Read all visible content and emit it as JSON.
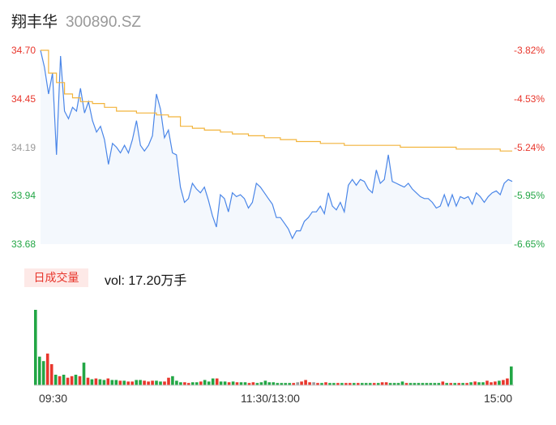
{
  "header": {
    "name": "翔丰华",
    "code": "300890.SZ"
  },
  "volume": {
    "badge": "日成交量",
    "label": "vol: 17.20万手"
  },
  "colors": {
    "price": "#4a86e8",
    "avg": "#f2b43c",
    "up": "#e8362c",
    "down": "#22a645",
    "neutral": "#999999"
  },
  "chart_data": [
    {
      "type": "line",
      "y_ticks_left": [
        "34.70",
        "34.45",
        "34.19",
        "33.94",
        "33.68"
      ],
      "y_ticks_right": [
        "-3.82%",
        "-4.53%",
        "-5.24%",
        "-5.95%",
        "-6.65%"
      ],
      "ylim": [
        33.68,
        34.7
      ],
      "x_ticks": [
        "09:30",
        "11:30/13:00",
        "15:00"
      ],
      "series": [
        {
          "role": "price",
          "points": [
            [
              0,
              34.7
            ],
            [
              1,
              34.61
            ],
            [
              2,
              34.47
            ],
            [
              3,
              34.58
            ],
            [
              4,
              34.15
            ],
            [
              5,
              34.67
            ],
            [
              6,
              34.38
            ],
            [
              7,
              34.34
            ],
            [
              8,
              34.4
            ],
            [
              9,
              34.38
            ],
            [
              10,
              34.5
            ],
            [
              11,
              34.37
            ],
            [
              12,
              34.43
            ],
            [
              13,
              34.33
            ],
            [
              14,
              34.27
            ],
            [
              15,
              34.3
            ],
            [
              16,
              34.23
            ],
            [
              17,
              34.1
            ],
            [
              18,
              34.21
            ],
            [
              19,
              34.19
            ],
            [
              20,
              34.16
            ],
            [
              21,
              34.2
            ],
            [
              22,
              34.16
            ],
            [
              23,
              34.23
            ],
            [
              24,
              34.33
            ],
            [
              25,
              34.2
            ],
            [
              26,
              34.17
            ],
            [
              27,
              34.2
            ],
            [
              28,
              34.25
            ],
            [
              29,
              34.47
            ],
            [
              30,
              34.39
            ],
            [
              31,
              34.24
            ],
            [
              32,
              34.28
            ],
            [
              33,
              34.16
            ],
            [
              34,
              34.15
            ],
            [
              35,
              33.98
            ],
            [
              36,
              33.9
            ],
            [
              37,
              33.92
            ],
            [
              38,
              34.0
            ],
            [
              39,
              33.97
            ],
            [
              40,
              33.95
            ],
            [
              41,
              33.98
            ],
            [
              42,
              33.91
            ],
            [
              43,
              33.83
            ],
            [
              44,
              33.77
            ],
            [
              45,
              33.94
            ],
            [
              46,
              33.92
            ],
            [
              47,
              33.85
            ],
            [
              48,
              33.95
            ],
            [
              49,
              33.93
            ],
            [
              50,
              33.94
            ],
            [
              51,
              33.92
            ],
            [
              52,
              33.87
            ],
            [
              53,
              33.9
            ],
            [
              54,
              34.0
            ],
            [
              55,
              33.98
            ],
            [
              56,
              33.95
            ],
            [
              57,
              33.92
            ],
            [
              58,
              33.89
            ],
            [
              59,
              33.82
            ],
            [
              60,
              33.82
            ],
            [
              61,
              33.79
            ],
            [
              62,
              33.76
            ],
            [
              63,
              33.71
            ],
            [
              64,
              33.75
            ],
            [
              65,
              33.75
            ],
            [
              66,
              33.8
            ],
            [
              67,
              33.82
            ],
            [
              68,
              33.85
            ],
            [
              69,
              33.85
            ],
            [
              70,
              33.88
            ],
            [
              71,
              33.84
            ],
            [
              72,
              33.95
            ],
            [
              73,
              33.88
            ],
            [
              74,
              33.86
            ],
            [
              75,
              33.9
            ],
            [
              76,
              33.85
            ],
            [
              77,
              33.99
            ],
            [
              78,
              34.02
            ],
            [
              79,
              33.99
            ],
            [
              80,
              34.02
            ],
            [
              81,
              34.01
            ],
            [
              82,
              33.97
            ],
            [
              83,
              33.95
            ],
            [
              84,
              34.07
            ],
            [
              85,
              34.0
            ],
            [
              86,
              34.02
            ],
            [
              87,
              34.15
            ],
            [
              88,
              34.01
            ],
            [
              89,
              34.0
            ],
            [
              90,
              33.99
            ],
            [
              91,
              33.98
            ],
            [
              92,
              34.0
            ],
            [
              93,
              33.97
            ],
            [
              94,
              33.95
            ],
            [
              95,
              33.93
            ],
            [
              96,
              33.92
            ],
            [
              97,
              33.92
            ],
            [
              98,
              33.9
            ],
            [
              99,
              33.87
            ],
            [
              100,
              33.88
            ],
            [
              101,
              33.94
            ],
            [
              102,
              33.88
            ],
            [
              103,
              33.94
            ],
            [
              104,
              33.88
            ],
            [
              105,
              33.93
            ],
            [
              106,
              33.92
            ],
            [
              107,
              33.93
            ],
            [
              108,
              33.89
            ],
            [
              109,
              33.95
            ],
            [
              110,
              33.93
            ],
            [
              111,
              33.9
            ],
            [
              112,
              33.93
            ],
            [
              113,
              33.95
            ],
            [
              114,
              33.96
            ],
            [
              115,
              33.94
            ],
            [
              116,
              34.0
            ],
            [
              117,
              34.02
            ],
            [
              118,
              34.01
            ]
          ]
        },
        {
          "role": "average",
          "points": [
            [
              0,
              34.7
            ],
            [
              2,
              34.58
            ],
            [
              4,
              34.53
            ],
            [
              6,
              34.47
            ],
            [
              8,
              34.45
            ],
            [
              10,
              34.43
            ],
            [
              13,
              34.42
            ],
            [
              16,
              34.4
            ],
            [
              19,
              34.38
            ],
            [
              24,
              34.37
            ],
            [
              29,
              34.36
            ],
            [
              32,
              34.35
            ],
            [
              35,
              34.3
            ],
            [
              38,
              34.29
            ],
            [
              41,
              34.28
            ],
            [
              45,
              34.27
            ],
            [
              48,
              34.26
            ],
            [
              52,
              34.25
            ],
            [
              56,
              34.24
            ],
            [
              60,
              34.23
            ],
            [
              64,
              34.22
            ],
            [
              70,
              34.21
            ],
            [
              76,
              34.2
            ],
            [
              83,
              34.2
            ],
            [
              90,
              34.19
            ],
            [
              96,
              34.19
            ],
            [
              104,
              34.18
            ],
            [
              110,
              34.18
            ],
            [
              115,
              34.17
            ],
            [
              118,
              34.17
            ]
          ]
        }
      ]
    },
    {
      "type": "bar",
      "title": "日成交量",
      "values": [
        100,
        38,
        32,
        42,
        28,
        14,
        12,
        14,
        10,
        12,
        14,
        12,
        30,
        10,
        8,
        9,
        8,
        7,
        9,
        7,
        7,
        6,
        6,
        5,
        5,
        7,
        7,
        6,
        5,
        6,
        6,
        5,
        5,
        10,
        12,
        6,
        4,
        4,
        3,
        4,
        4,
        5,
        7,
        5,
        9,
        9,
        5,
        5,
        4,
        5,
        4,
        4,
        4,
        3,
        4,
        3,
        4,
        6,
        4,
        4,
        3,
        3,
        3,
        3,
        3,
        4,
        5,
        7,
        4,
        4,
        3,
        3,
        4,
        3,
        3,
        3,
        3,
        3,
        3,
        3,
        3,
        3,
        3,
        3,
        3,
        3,
        4,
        4,
        3,
        3,
        3,
        5,
        3,
        3,
        3,
        3,
        3,
        3,
        3,
        3,
        3,
        5,
        3,
        3,
        3,
        3,
        3,
        3,
        4,
        5,
        4,
        4,
        6,
        4,
        5,
        6,
        7,
        9,
        25
      ],
      "directions": [
        "d",
        "d",
        "d",
        "u",
        "u",
        "d",
        "u",
        "d",
        "u",
        "u",
        "d",
        "u",
        "d",
        "u",
        "d",
        "u",
        "d",
        "d",
        "u",
        "d",
        "d",
        "u",
        "d",
        "u",
        "u",
        "d",
        "d",
        "u",
        "u",
        "u",
        "d",
        "d",
        "u",
        "u",
        "d",
        "d",
        "d",
        "u",
        "u",
        "d",
        "d",
        "u",
        "d",
        "d",
        "d",
        "u",
        "d",
        "d",
        "u",
        "d",
        "u",
        "d",
        "d",
        "u",
        "u",
        "d",
        "d",
        "d",
        "d",
        "d",
        "d",
        "d",
        "d",
        "d",
        "u",
        "n",
        "u",
        "u",
        "u",
        "n",
        "u",
        "d",
        "u",
        "d",
        "d",
        "u",
        "d",
        "u",
        "u",
        "d",
        "u",
        "d",
        "d",
        "d",
        "u",
        "d",
        "u",
        "u",
        "d",
        "d",
        "d",
        "d",
        "u",
        "d",
        "d",
        "d",
        "d",
        "d",
        "d",
        "d",
        "d",
        "u",
        "d",
        "u",
        "d",
        "u",
        "d",
        "u",
        "d",
        "u",
        "d",
        "d",
        "u",
        "u",
        "u",
        "d",
        "u",
        "u",
        "d"
      ]
    }
  ]
}
